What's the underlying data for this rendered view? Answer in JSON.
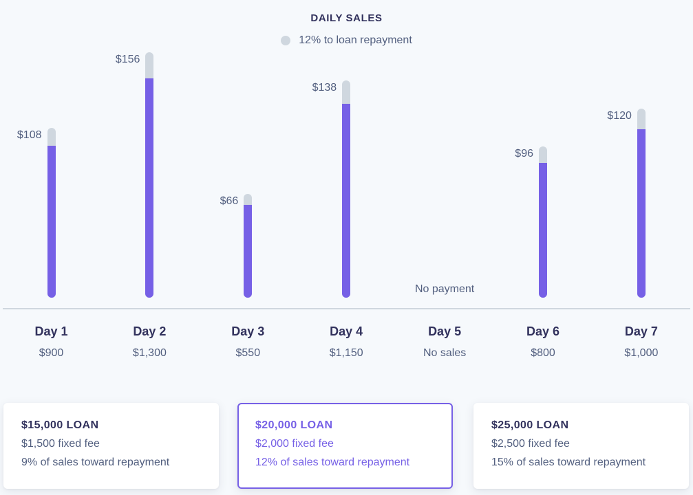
{
  "chart_data": {
    "type": "bar",
    "title": "DAILY SALES",
    "legend": [
      {
        "label": "12% to loan repayment",
        "color": "#cfd7df"
      }
    ],
    "categories": [
      "Day 1",
      "Day 2",
      "Day 3",
      "Day 4",
      "Day 5",
      "Day 6",
      "Day 7"
    ],
    "sales_labels": [
      "$900",
      "$1,300",
      "$550",
      "$1,150",
      "No sales",
      "$800",
      "$1,000"
    ],
    "sales": [
      900,
      1300,
      550,
      1150,
      0,
      800,
      1000
    ],
    "repayment": [
      108,
      156,
      66,
      138,
      0,
      96,
      120
    ],
    "repayment_labels": [
      "$108",
      "$156",
      "$66",
      "$138",
      "",
      "$96",
      "$120"
    ],
    "no_payment_label": "No payment",
    "colors": {
      "sales": "#7660e6",
      "repayment": "#cfd7df"
    }
  },
  "cards": [
    {
      "title": "$15,000 LOAN",
      "fee": "$1,500 fixed fee",
      "rate": "9% of sales toward repayment",
      "selected": false
    },
    {
      "title": "$20,000 LOAN",
      "fee": "$2,000 fixed fee",
      "rate": "12% of sales toward repayment",
      "selected": true
    },
    {
      "title": "$25,000 LOAN",
      "fee": "$2,500 fixed fee",
      "rate": "15% of sales toward repayment",
      "selected": false
    }
  ]
}
